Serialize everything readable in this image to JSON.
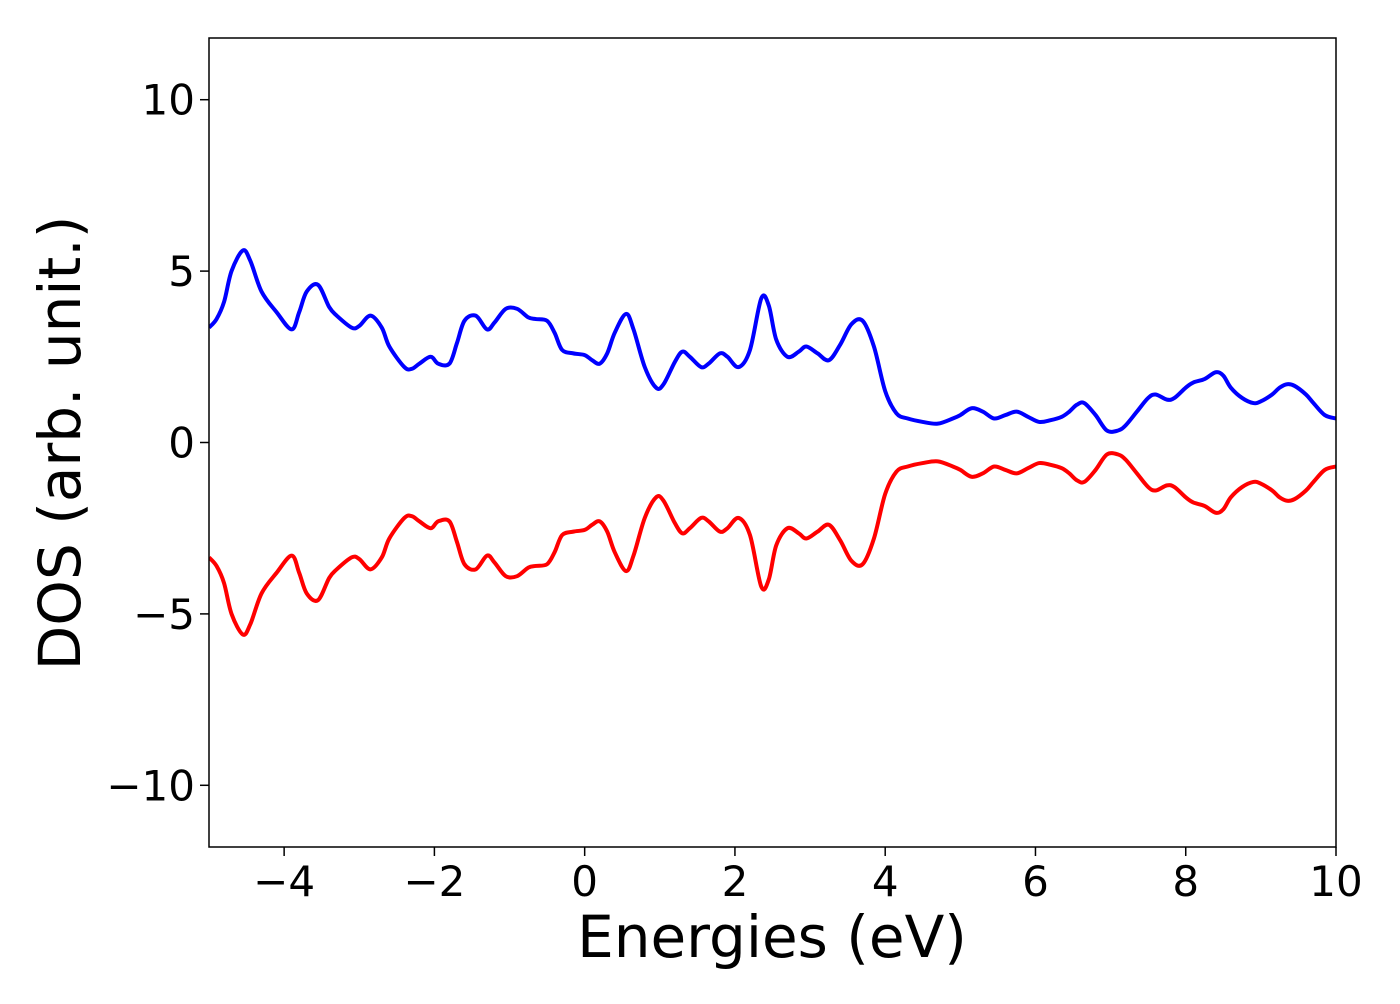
{
  "chart_data": {
    "type": "line",
    "title": "",
    "xlabel": "Energies (eV)",
    "ylabel": "DOS (arb. unit.)",
    "xlim": [
      -5,
      10
    ],
    "ylim": [
      -11.8,
      11.8
    ],
    "xticks": [
      -4,
      -2,
      0,
      2,
      4,
      6,
      8,
      10
    ],
    "xtick_labels": [
      "−4",
      "−2",
      "0",
      "2",
      "4",
      "6",
      "8",
      "10"
    ],
    "yticks": [
      -10,
      -5,
      0,
      5,
      10
    ],
    "ytick_labels": [
      "−10",
      "−5",
      "0",
      "5",
      "10"
    ],
    "grid": false,
    "legend": "none",
    "series": [
      {
        "color": "#0000ff",
        "x": [
          -5.0,
          -4.9,
          -4.8,
          -4.7,
          -4.55,
          -4.45,
          -4.3,
          -4.1,
          -3.9,
          -3.8,
          -3.7,
          -3.55,
          -3.4,
          -3.3,
          -3.1,
          -3.0,
          -2.85,
          -2.7,
          -2.6,
          -2.4,
          -2.3,
          -2.2,
          -2.05,
          -1.95,
          -1.8,
          -1.7,
          -1.6,
          -1.45,
          -1.3,
          -1.2,
          -1.05,
          -0.9,
          -0.75,
          -0.65,
          -0.5,
          -0.4,
          -0.3,
          -0.15,
          0.0,
          0.1,
          0.2,
          0.3,
          0.4,
          0.55,
          0.65,
          0.8,
          0.95,
          1.05,
          1.2,
          1.3,
          1.4,
          1.55,
          1.65,
          1.8,
          1.9,
          2.05,
          2.2,
          2.35,
          2.45,
          2.55,
          2.7,
          2.85,
          2.95,
          3.1,
          3.25,
          3.4,
          3.55,
          3.7,
          3.85,
          4.0,
          4.15,
          4.3,
          4.5,
          4.7,
          4.9,
          5.0,
          5.15,
          5.3,
          5.45,
          5.6,
          5.75,
          5.9,
          6.05,
          6.2,
          6.35,
          6.45,
          6.55,
          6.65,
          6.8,
          6.95,
          7.1,
          7.2,
          7.35,
          7.5,
          7.6,
          7.75,
          7.85,
          8.0,
          8.1,
          8.25,
          8.4,
          8.5,
          8.6,
          8.75,
          8.9,
          9.0,
          9.15,
          9.25,
          9.35,
          9.45,
          9.6,
          9.7,
          9.85,
          10.0
        ],
        "y": [
          3.35,
          3.6,
          4.1,
          5.0,
          5.6,
          5.3,
          4.4,
          3.8,
          3.3,
          3.8,
          4.4,
          4.6,
          3.95,
          3.7,
          3.35,
          3.4,
          3.7,
          3.35,
          2.8,
          2.2,
          2.15,
          2.3,
          2.5,
          2.3,
          2.3,
          2.9,
          3.55,
          3.7,
          3.3,
          3.5,
          3.9,
          3.9,
          3.65,
          3.6,
          3.55,
          3.2,
          2.7,
          2.6,
          2.55,
          2.4,
          2.3,
          2.6,
          3.2,
          3.75,
          3.3,
          2.2,
          1.6,
          1.7,
          2.35,
          2.65,
          2.5,
          2.2,
          2.3,
          2.6,
          2.5,
          2.2,
          2.7,
          4.2,
          4.0,
          3.0,
          2.5,
          2.65,
          2.8,
          2.6,
          2.4,
          2.85,
          3.45,
          3.55,
          2.8,
          1.5,
          0.85,
          0.7,
          0.6,
          0.55,
          0.7,
          0.8,
          1.0,
          0.9,
          0.7,
          0.8,
          0.9,
          0.75,
          0.6,
          0.65,
          0.75,
          0.9,
          1.1,
          1.15,
          0.8,
          0.35,
          0.35,
          0.5,
          0.9,
          1.3,
          1.4,
          1.25,
          1.3,
          1.6,
          1.75,
          1.85,
          2.05,
          1.95,
          1.6,
          1.3,
          1.15,
          1.2,
          1.4,
          1.6,
          1.7,
          1.65,
          1.4,
          1.15,
          0.8,
          0.7
        ]
      },
      {
        "color": "#ff0000",
        "x": [
          -5.0,
          -4.9,
          -4.8,
          -4.7,
          -4.55,
          -4.45,
          -4.3,
          -4.1,
          -3.9,
          -3.8,
          -3.7,
          -3.55,
          -3.4,
          -3.3,
          -3.1,
          -3.0,
          -2.85,
          -2.7,
          -2.6,
          -2.4,
          -2.3,
          -2.2,
          -2.05,
          -1.95,
          -1.8,
          -1.7,
          -1.6,
          -1.45,
          -1.3,
          -1.2,
          -1.05,
          -0.9,
          -0.75,
          -0.65,
          -0.5,
          -0.4,
          -0.3,
          -0.15,
          0.0,
          0.1,
          0.2,
          0.3,
          0.4,
          0.55,
          0.65,
          0.8,
          0.95,
          1.05,
          1.2,
          1.3,
          1.4,
          1.55,
          1.65,
          1.8,
          1.9,
          2.05,
          2.2,
          2.35,
          2.45,
          2.55,
          2.7,
          2.85,
          2.95,
          3.1,
          3.25,
          3.4,
          3.55,
          3.7,
          3.85,
          4.0,
          4.15,
          4.3,
          4.5,
          4.7,
          4.9,
          5.0,
          5.15,
          5.3,
          5.45,
          5.6,
          5.75,
          5.9,
          6.05,
          6.2,
          6.35,
          6.45,
          6.55,
          6.65,
          6.8,
          6.95,
          7.1,
          7.2,
          7.35,
          7.5,
          7.6,
          7.75,
          7.85,
          8.0,
          8.1,
          8.25,
          8.4,
          8.5,
          8.6,
          8.75,
          8.9,
          9.0,
          9.15,
          9.25,
          9.35,
          9.45,
          9.6,
          9.7,
          9.85,
          10.0
        ],
        "y": [
          -3.35,
          -3.6,
          -4.1,
          -5.0,
          -5.6,
          -5.3,
          -4.4,
          -3.8,
          -3.3,
          -3.8,
          -4.4,
          -4.6,
          -3.95,
          -3.7,
          -3.35,
          -3.4,
          -3.7,
          -3.35,
          -2.8,
          -2.2,
          -2.15,
          -2.3,
          -2.5,
          -2.3,
          -2.3,
          -2.9,
          -3.55,
          -3.7,
          -3.3,
          -3.5,
          -3.9,
          -3.9,
          -3.65,
          -3.6,
          -3.55,
          -3.2,
          -2.7,
          -2.6,
          -2.55,
          -2.4,
          -2.3,
          -2.6,
          -3.2,
          -3.75,
          -3.3,
          -2.2,
          -1.6,
          -1.7,
          -2.35,
          -2.65,
          -2.5,
          -2.2,
          -2.3,
          -2.6,
          -2.5,
          -2.2,
          -2.7,
          -4.2,
          -4.0,
          -3.0,
          -2.5,
          -2.65,
          -2.8,
          -2.6,
          -2.4,
          -2.85,
          -3.45,
          -3.55,
          -2.8,
          -1.5,
          -0.85,
          -0.7,
          -0.6,
          -0.55,
          -0.7,
          -0.8,
          -1.0,
          -0.9,
          -0.7,
          -0.8,
          -0.9,
          -0.75,
          -0.6,
          -0.65,
          -0.75,
          -0.9,
          -1.1,
          -1.15,
          -0.8,
          -0.35,
          -0.35,
          -0.5,
          -0.9,
          -1.3,
          -1.4,
          -1.25,
          -1.3,
          -1.6,
          -1.75,
          -1.85,
          -2.05,
          -1.95,
          -1.6,
          -1.3,
          -1.15,
          -1.2,
          -1.4,
          -1.6,
          -1.7,
          -1.65,
          -1.4,
          -1.15,
          -0.8,
          -0.7
        ]
      }
    ]
  }
}
